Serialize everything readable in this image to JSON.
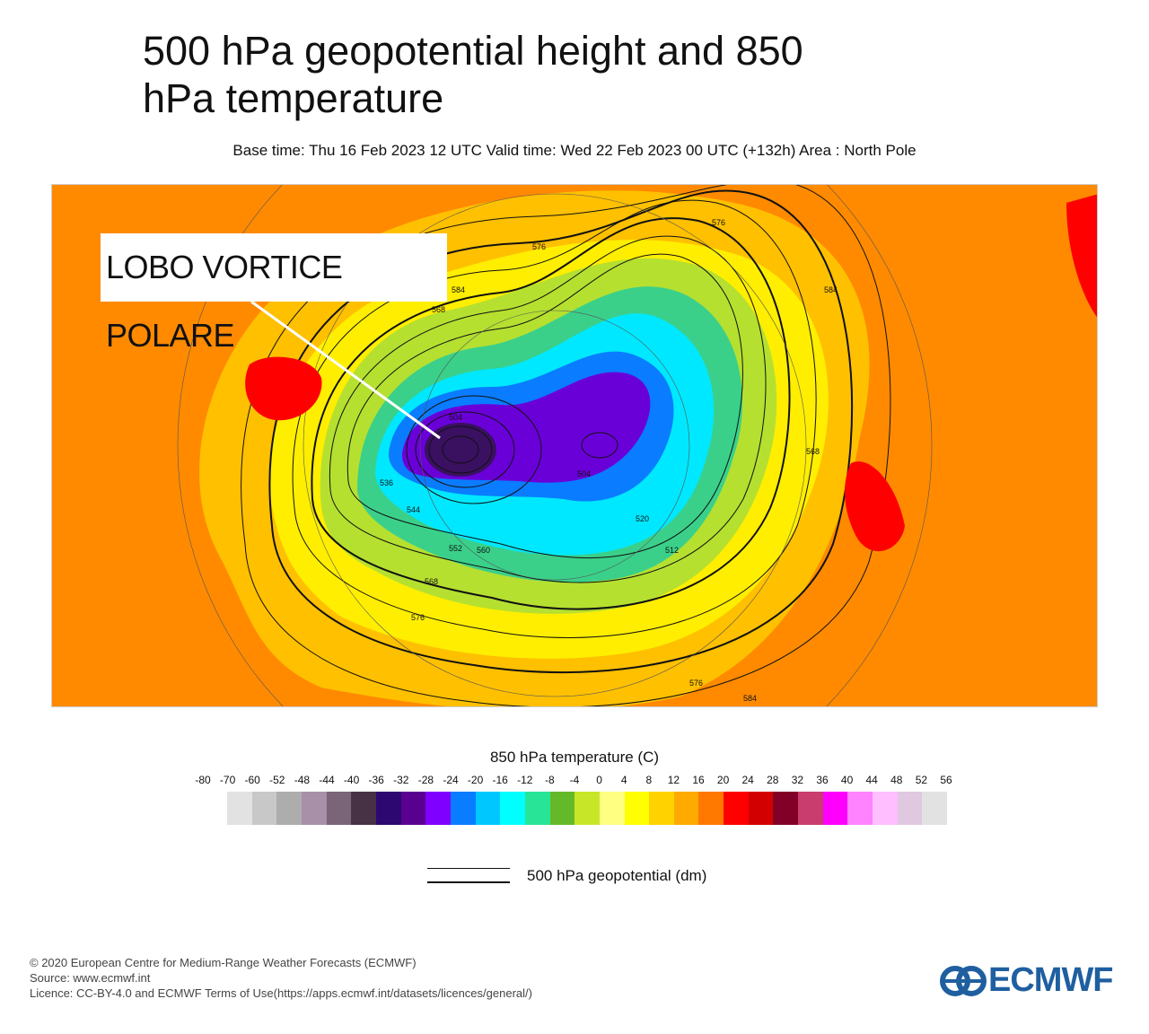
{
  "header": {
    "title": "500 hPa geopotential height and 850 hPa temperature",
    "subtitle": "Base time: Thu 16 Feb 2023 12 UTC Valid time: Wed 22 Feb 2023 00 UTC (+132h) Area : North Pole"
  },
  "map": {
    "annotation": "LOBO VORTICE POLARE",
    "contour_labels": [
      "584",
      "568",
      "576",
      "576",
      "584",
      "504",
      "504",
      "512",
      "520",
      "536",
      "544",
      "552",
      "560",
      "568",
      "576",
      "576",
      "584",
      "568"
    ]
  },
  "colorbar": {
    "title": "850 hPa temperature (C)",
    "labels": [
      "-80",
      "-70",
      "-60",
      "-52",
      "-48",
      "-44",
      "-40",
      "-36",
      "-32",
      "-28",
      "-24",
      "-20",
      "-16",
      "-12",
      "-8",
      "-4",
      "0",
      "4",
      "8",
      "12",
      "16",
      "20",
      "24",
      "28",
      "32",
      "36",
      "40",
      "44",
      "48",
      "52",
      "56"
    ],
    "colors": [
      "#e2e2e2",
      "#c8c8c8",
      "#adadad",
      "#a890a8",
      "#7a6478",
      "#463244",
      "#2c0870",
      "#5a0090",
      "#8000ff",
      "#0a7cff",
      "#00c8ff",
      "#00ffff",
      "#28e496",
      "#64b928",
      "#c8e628",
      "#ffff82",
      "#ffff00",
      "#ffd200",
      "#ffaa00",
      "#ff7800",
      "#ff0000",
      "#d20000",
      "#820028",
      "#c83c6e",
      "#ff00ff",
      "#ff82ff",
      "#ffbeff",
      "#e1c8e1",
      "#e2e2e2"
    ]
  },
  "legend": {
    "label": "500 hPa geopotential (dm)"
  },
  "footer": {
    "copyright": "© 2020 European Centre for Medium-Range Weather Forecasts (ECMWF)",
    "source": "Source: www.ecmwf.int",
    "licence": "Licence: CC-BY-4.0 and ECMWF Terms of Use(https://apps.ecmwf.int/datasets/licences/general/)",
    "logo_text": "ECMWF"
  }
}
